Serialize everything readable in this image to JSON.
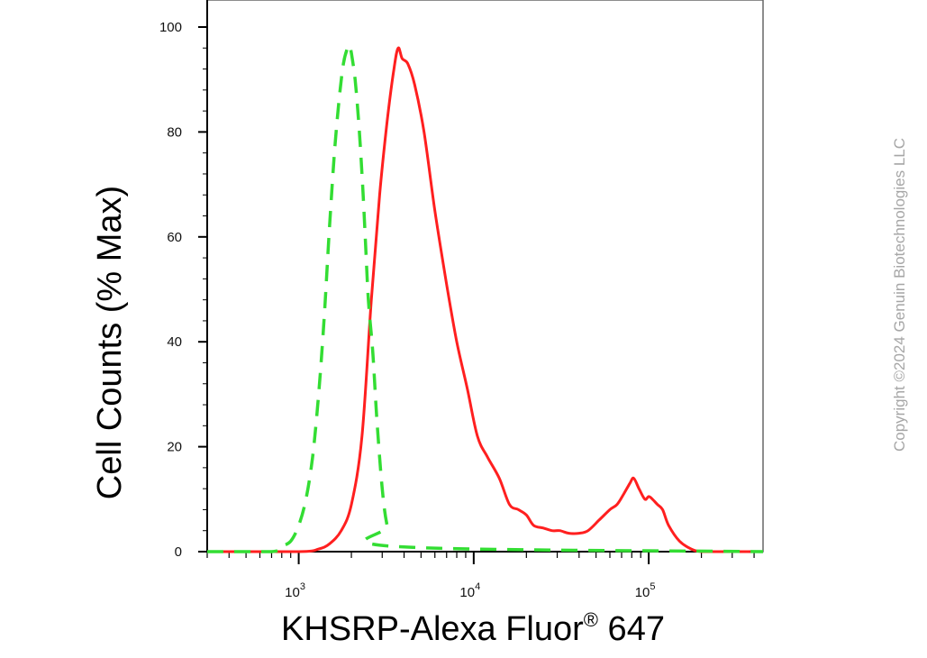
{
  "chart_data": {
    "type": "line",
    "title": "",
    "xlabel": "KHSRP-Alexa Fluor",
    "xlabel_superscript": "®",
    "xlabel_suffix": " 647",
    "ylabel": "Cell Counts (% Max)",
    "x_scale": "log",
    "xlim": [
      300,
      450000
    ],
    "ylim": [
      0,
      100
    ],
    "y_ticks": [
      0,
      20,
      40,
      60,
      80,
      100
    ],
    "x_tick_labels": [
      {
        "base": "10",
        "exp": "3",
        "value": 1000
      },
      {
        "base": "10",
        "exp": "4",
        "value": 10000
      },
      {
        "base": "10",
        "exp": "5",
        "value": 100000
      }
    ],
    "grid": false,
    "legend": "none",
    "series": [
      {
        "color": "#ff1f1f",
        "style": "solid",
        "x": [
          300,
          1000,
          1300,
          1500,
          1750,
          2000,
          2300,
          2600,
          2900,
          3200,
          3500,
          3700,
          3900,
          4200,
          4600,
          5200,
          6000,
          7000,
          8000,
          9200,
          10500,
          12000,
          14000,
          16000,
          18000,
          20000,
          22000,
          25000,
          28000,
          31000,
          35000,
          40000,
          45000,
          52000,
          60000,
          66000,
          72000,
          78000,
          82000,
          88000,
          95000,
          100000,
          105000,
          112000,
          120000,
          130000,
          150000,
          175000,
          200000,
          260000,
          450000
        ],
        "y": [
          0,
          0,
          0.5,
          1.5,
          4,
          9,
          22,
          48,
          68,
          82,
          92,
          96,
          94,
          93,
          89,
          80,
          65,
          51,
          40,
          31,
          22,
          18,
          14,
          9,
          8,
          7,
          5,
          4.5,
          4,
          4,
          3.5,
          3.5,
          4,
          6,
          8,
          9,
          11,
          13,
          14,
          12,
          10,
          10.5,
          10,
          9,
          8,
          5,
          2,
          0.5,
          0,
          0,
          0
        ]
      },
      {
        "color": "#33dd33",
        "style": "dashed",
        "x": [
          300,
          700,
          800,
          900,
          1000,
          1100,
          1200,
          1300,
          1400,
          1500,
          1600,
          1700,
          1800,
          1900,
          1950,
          2000,
          2100,
          2200,
          2300,
          2400,
          2500,
          2650,
          2800,
          3000,
          3200,
          3500,
          450000
        ],
        "y": [
          0,
          0,
          1,
          2,
          5,
          10,
          18,
          30,
          45,
          62,
          76,
          86,
          93,
          96,
          96.5,
          95,
          90,
          82,
          72,
          60,
          48,
          38,
          25,
          12,
          5,
          1,
          0
        ]
      }
    ]
  },
  "copyright": "Copyright ©2024 Genuin Biotechnologies LLC"
}
